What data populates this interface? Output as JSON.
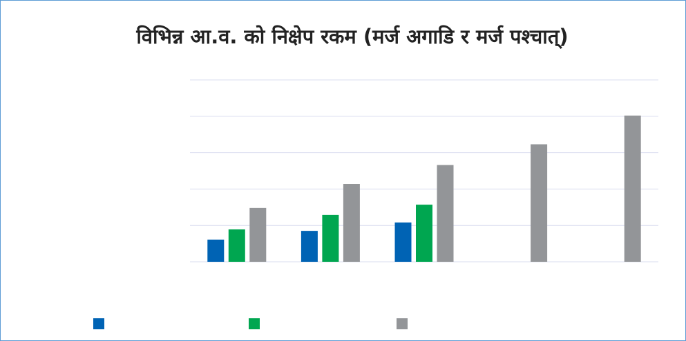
{
  "chart_data": {
    "type": "bar",
    "title": "विभिन्न आ.व. को निक्षेप रकम (मर्ज अगाडि र मर्ज पश्चात्)",
    "categories": [
      null,
      null,
      null,
      null,
      null
    ],
    "series": [
      {
        "name": null,
        "color": "#0063b4",
        "values": [
          0.61,
          0.85,
          1.08,
          null,
          null
        ]
      },
      {
        "name": null,
        "color": "#00a650",
        "values": [
          0.89,
          1.29,
          1.57,
          null,
          null
        ]
      },
      {
        "name": null,
        "color": "#939598",
        "values": [
          1.48,
          2.14,
          2.66,
          3.23,
          4.02
        ]
      }
    ],
    "ylim": [
      0,
      5
    ],
    "yticks": [
      0,
      1,
      2,
      3,
      4,
      5
    ],
    "grid": true,
    "legend": "bottom"
  }
}
